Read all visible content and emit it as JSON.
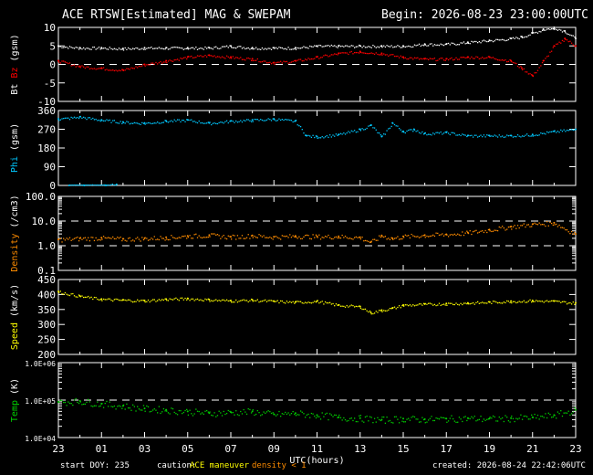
{
  "header": {
    "title": "ACE RTSW[Estimated] MAG & SWEPAM",
    "begin": "Begin: 2026-08-23 23:00:00UTC"
  },
  "footer": {
    "start_doy": "start DOY: 235",
    "caution_label": "caution:",
    "caution_maneuver": "ACE maneuver",
    "caution_density": "density < 1",
    "created": "created: 2026-08-24 22:42:06UTC"
  },
  "colors": {
    "background": "#000000",
    "axes": "#ffffff",
    "bt": "#ffffff",
    "bz": "#ff0000",
    "phi": "#00c8ff",
    "density": "#ff8c00",
    "speed": "#ffff00",
    "temp": "#00d000",
    "caution_maneuver": "#ffff00",
    "caution_density": "#ff8c00"
  },
  "chart_data": {
    "type": "scatter",
    "x_axis": {
      "label": "UTC(hours)",
      "range": [
        23,
        47
      ],
      "tick_labels": [
        "23",
        "01",
        "03",
        "05",
        "07",
        "09",
        "11",
        "13",
        "15",
        "17",
        "19",
        "21",
        "23"
      ]
    },
    "panels": [
      {
        "id": "bt_bz",
        "ylabel_parts": [
          {
            "text": "Bt",
            "color": "#ffffff"
          },
          {
            "text": "Bz",
            "color": "#ff0000"
          },
          {
            "text": "(gsm)",
            "color": "#ffffff"
          }
        ],
        "ylim": [
          -10,
          10
        ],
        "log": false,
        "ticks": [
          10,
          5,
          0,
          -5,
          -10
        ],
        "tick_labels": [
          "10",
          "5",
          "0",
          "-5",
          "-10"
        ],
        "dashed": [
          0
        ],
        "series": [
          {
            "name": "Bt",
            "color": "#ffffff",
            "x": [
              23,
              24,
              25,
              26,
              27,
              28,
              29,
              30,
              31,
              32,
              33,
              34,
              35,
              36,
              37,
              38,
              39,
              40,
              41,
              42,
              43,
              44,
              44.5,
              45,
              45.5,
              46,
              46.5,
              47
            ],
            "y": [
              5,
              4.5,
              4.5,
              4.3,
              4.5,
              4.5,
              4.5,
              4.5,
              5,
              4.5,
              4.5,
              4.5,
              5,
              5,
              5,
              5,
              5,
              5.5,
              5.5,
              6,
              6.5,
              7,
              7.5,
              8.5,
              9.5,
              10,
              9,
              7
            ]
          },
          {
            "name": "Bz",
            "color": "#ff0000",
            "x": [
              23,
              24,
              25,
              26,
              27,
              28,
              29,
              30,
              31,
              32,
              33,
              34,
              35,
              36,
              37,
              38,
              39,
              40,
              41,
              42,
              43,
              44,
              44.5,
              45,
              45.5,
              46,
              46.5,
              47
            ],
            "y": [
              1,
              -0.5,
              -1,
              -1.5,
              0,
              1,
              2,
              2.5,
              2,
              1.5,
              0.5,
              1,
              2,
              3,
              3.5,
              3,
              2,
              1.5,
              1.5,
              2,
              2,
              1,
              -1,
              -3,
              1,
              5,
              7,
              5
            ]
          }
        ]
      },
      {
        "id": "phi",
        "ylabel_parts": [
          {
            "text": "Phi",
            "color": "#00c8ff"
          },
          {
            "text": "(gsm)",
            "color": "#ffffff"
          }
        ],
        "ylim": [
          0,
          360
        ],
        "log": false,
        "ticks": [
          360,
          270,
          180,
          90,
          0
        ],
        "tick_labels": [
          "360",
          "270",
          "180",
          "90",
          "0"
        ],
        "dashed": [],
        "series": [
          {
            "name": "Phi",
            "color": "#00c8ff",
            "x": [
              23,
              24,
              25,
              26,
              27,
              28,
              29,
              30,
              31,
              32,
              33,
              34,
              34.5,
              35,
              36,
              37,
              37.5,
              38,
              38.5,
              39,
              39.5,
              40,
              41,
              42,
              43,
              44,
              45,
              46,
              47
            ],
            "y": [
              320,
              330,
              315,
              305,
              300,
              310,
              315,
              300,
              310,
              315,
              320,
              310,
              240,
              235,
              245,
              270,
              290,
              235,
              300,
              260,
              270,
              250,
              255,
              240,
              240,
              240,
              245,
              260,
              270
            ]
          },
          {
            "name": "Phi",
            "color": "#00c8ff",
            "x": [
              23.5,
              24.2,
              25.2,
              25.7
            ],
            "y": [
              0,
              0,
              0,
              5
            ]
          }
        ]
      },
      {
        "id": "density",
        "ylabel_parts": [
          {
            "text": "Density",
            "color": "#ff8c00"
          },
          {
            "text": "(/cm3)",
            "color": "#ffffff"
          }
        ],
        "ylim": [
          0.1,
          100
        ],
        "log": true,
        "ticks": [
          100,
          10,
          1,
          0.1
        ],
        "tick_labels": [
          "100.0",
          "10.0",
          "1.0",
          "0.1"
        ],
        "dashed": [
          10,
          1
        ],
        "series": [
          {
            "name": "Density",
            "color": "#ff8c00",
            "x": [
              23,
              24,
              25,
              26,
              27,
              28,
              29,
              30,
              31,
              32,
              33,
              34,
              35,
              36,
              37,
              37.5,
              38,
              38.5,
              39,
              40,
              41,
              42,
              43,
              44,
              45,
              46,
              47
            ],
            "y": [
              1.8,
              2,
              2.1,
              1.9,
              2,
              2.2,
              2.5,
              2.7,
              2.3,
              2.6,
              2.3,
              2.5,
              2.4,
              2.4,
              2.2,
              1.4,
              2.6,
              2,
              2.4,
              2.7,
              2.9,
              3.4,
              4.5,
              6,
              7.5,
              8.5,
              3
            ]
          }
        ]
      },
      {
        "id": "speed",
        "ylabel_parts": [
          {
            "text": "Speed",
            "color": "#ffff00"
          },
          {
            "text": "(km/s)",
            "color": "#ffffff"
          }
        ],
        "ylim": [
          200,
          450
        ],
        "log": false,
        "ticks": [
          450,
          400,
          350,
          300,
          250,
          200
        ],
        "tick_labels": [
          "450",
          "400",
          "350",
          "300",
          "250",
          "200"
        ],
        "dashed": [],
        "series": [
          {
            "name": "Speed",
            "color": "#ffff00",
            "x": [
              23,
              24,
              25,
              26,
              27,
              28,
              29,
              30,
              31,
              32,
              33,
              34,
              35,
              36,
              37,
              37.5,
              38,
              38.5,
              39,
              40,
              41,
              42,
              43,
              44,
              45,
              46,
              47
            ],
            "y": [
              410,
              395,
              385,
              382,
              380,
              385,
              387,
              383,
              380,
              382,
              378,
              375,
              378,
              365,
              360,
              340,
              348,
              355,
              365,
              368,
              370,
              372,
              375,
              378,
              380,
              378,
              372
            ]
          }
        ]
      },
      {
        "id": "temp",
        "ylabel_parts": [
          {
            "text": "Temp",
            "color": "#00d000"
          },
          {
            "text": "(K)",
            "color": "#ffffff"
          }
        ],
        "ylim": [
          10000,
          1000000
        ],
        "log": true,
        "ticks": [
          1000000,
          100000,
          10000
        ],
        "tick_labels": [
          "1.0E+06",
          "1.0E+05",
          "1.0E+04"
        ],
        "dashed": [
          100000
        ],
        "series": [
          {
            "name": "Temp",
            "color": "#00d000",
            "x": [
              23,
              24,
              25,
              26,
              27,
              28,
              29,
              30,
              31,
              32,
              33,
              34,
              35,
              36,
              37,
              38,
              39,
              40,
              41,
              42,
              43,
              44,
              45,
              46,
              47
            ],
            "y": [
              90000,
              95000,
              80000,
              70000,
              60000,
              55000,
              50000,
              45000,
              48000,
              50000,
              42000,
              45000,
              40000,
              35000,
              33000,
              30000,
              32000,
              31000,
              32000,
              33000,
              32000,
              33000,
              35000,
              40000,
              55000
            ]
          }
        ]
      }
    ]
  }
}
